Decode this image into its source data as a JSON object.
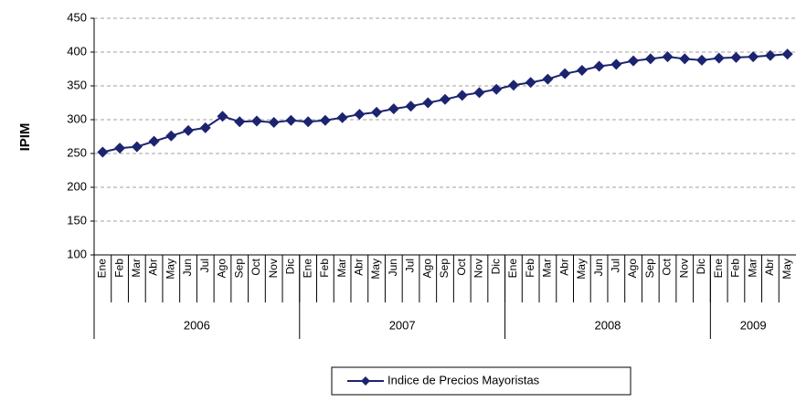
{
  "chart_data": {
    "type": "line",
    "y_label": "IPIM",
    "categories": [
      "Ene",
      "Feb",
      "Mar",
      "Abr",
      "May",
      "Jun",
      "Jul",
      "Ago",
      "Sep",
      "Oct",
      "Nov",
      "Dic",
      "Ene",
      "Feb",
      "Mar",
      "Abr",
      "May",
      "Jun",
      "Jul",
      "Ago",
      "Sep",
      "Oct",
      "Nov",
      "Dic",
      "Ene",
      "Feb",
      "Mar",
      "Abr",
      "May",
      "Jun",
      "Jul",
      "Ago",
      "Sep",
      "Oct",
      "Nov",
      "Dic",
      "Ene",
      "Feb",
      "Mar",
      "Abr",
      "May"
    ],
    "groups": [
      {
        "label": "2006",
        "count": 12
      },
      {
        "label": "2007",
        "count": 12
      },
      {
        "label": "2008",
        "count": 12
      },
      {
        "label": "2009",
        "count": 5
      }
    ],
    "series": [
      {
        "name": "Indice de Precios Mayoristas",
        "color": "#1c2470",
        "values": [
          252,
          258,
          260,
          268,
          276,
          284,
          288,
          305,
          297,
          298,
          296,
          299,
          297,
          299,
          303,
          308,
          311,
          316,
          320,
          325,
          330,
          336,
          340,
          345,
          351,
          355,
          360,
          368,
          373,
          379,
          382,
          387,
          390,
          393,
          390,
          388,
          391,
          392,
          393,
          395,
          397
        ]
      }
    ],
    "ylim": [
      100,
      450
    ],
    "yticks": [
      100,
      150,
      200,
      250,
      300,
      350,
      400,
      450
    ],
    "grid": true
  }
}
